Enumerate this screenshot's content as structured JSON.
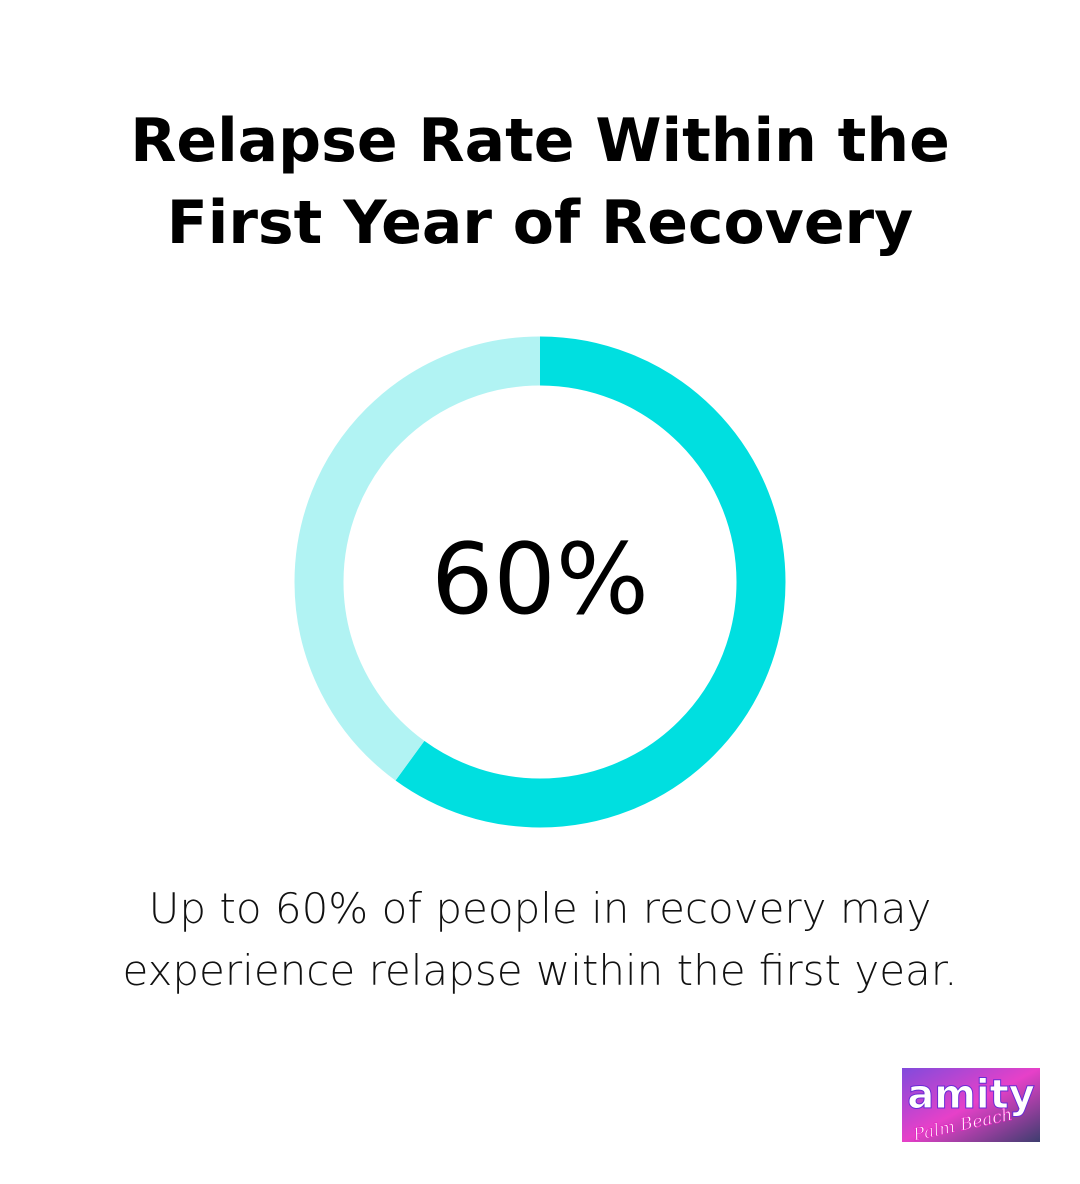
{
  "chart_data": {
    "type": "pie",
    "title": "Relapse Rate Within the First Year of Recovery",
    "title_lines": [
      "Relapse Rate Within the",
      "First Year of Recovery"
    ],
    "value_label": "60%",
    "slices": [
      {
        "value": 60,
        "color": "#00dfe0"
      },
      {
        "value": 40,
        "color": "#b1f3f3"
      }
    ],
    "donut": true
  },
  "caption": {
    "lines": [
      "Up to 60% of people in recovery may",
      "experience relapse within the first year."
    ]
  },
  "logo": {
    "text": "amity",
    "subtext": "Palm Beach",
    "colors": {
      "primary": "#e21fbf",
      "secondary": "#6a2bd6"
    }
  }
}
